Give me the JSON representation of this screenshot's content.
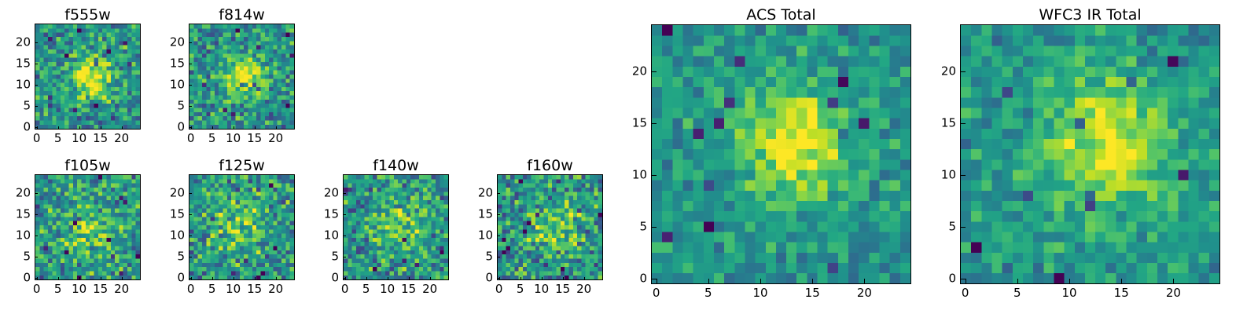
{
  "chart_data": [
    {
      "type": "heatmap",
      "title": "f555w",
      "xticks": [
        0,
        5,
        10,
        15,
        20
      ],
      "yticks": [
        0,
        5,
        10,
        15,
        20
      ],
      "xlim": [
        0,
        25
      ],
      "ylim": [
        0,
        25
      ],
      "grid": false,
      "colormap": "viridis",
      "pattern": {
        "cx": 13,
        "cy": 12,
        "peak": 0.85,
        "sigma": 3.5,
        "noise": 0.45,
        "seed": 11
      }
    },
    {
      "type": "heatmap",
      "title": "f814w",
      "xticks": [
        0,
        5,
        10,
        15,
        20
      ],
      "yticks": [
        0,
        5,
        10,
        15,
        20
      ],
      "xlim": [
        0,
        25
      ],
      "ylim": [
        0,
        25
      ],
      "grid": false,
      "colormap": "viridis",
      "pattern": {
        "cx": 13,
        "cy": 12,
        "peak": 0.8,
        "sigma": 3.5,
        "noise": 0.45,
        "seed": 23
      }
    },
    {
      "type": "heatmap",
      "title": "f105w",
      "xticks": [
        0,
        5,
        10,
        15,
        20
      ],
      "yticks": [
        0,
        5,
        10,
        15,
        20
      ],
      "xlim": [
        0,
        25
      ],
      "ylim": [
        0,
        25
      ],
      "grid": false,
      "colormap": "viridis",
      "pattern": {
        "cx": 12,
        "cy": 11,
        "peak": 0.4,
        "sigma": 5,
        "noise": 0.5,
        "seed": 37
      }
    },
    {
      "type": "heatmap",
      "title": "f125w",
      "xticks": [
        0,
        5,
        10,
        15,
        20
      ],
      "yticks": [
        0,
        5,
        10,
        15,
        20
      ],
      "xlim": [
        0,
        25
      ],
      "ylim": [
        0,
        25
      ],
      "grid": false,
      "colormap": "viridis",
      "pattern": {
        "cx": 12,
        "cy": 13,
        "peak": 0.4,
        "sigma": 5,
        "noise": 0.5,
        "seed": 41
      }
    },
    {
      "type": "heatmap",
      "title": "f140w",
      "xticks": [
        0,
        5,
        10,
        15,
        20
      ],
      "yticks": [
        0,
        5,
        10,
        15,
        20
      ],
      "xlim": [
        0,
        25
      ],
      "ylim": [
        0,
        25
      ],
      "grid": false,
      "colormap": "viridis",
      "pattern": {
        "cx": 13,
        "cy": 12,
        "peak": 0.45,
        "sigma": 4.5,
        "noise": 0.5,
        "seed": 53
      }
    },
    {
      "type": "heatmap",
      "title": "f160w",
      "xticks": [
        0,
        5,
        10,
        15,
        20
      ],
      "yticks": [
        0,
        5,
        10,
        15,
        20
      ],
      "xlim": [
        0,
        25
      ],
      "ylim": [
        0,
        25
      ],
      "grid": false,
      "colormap": "viridis",
      "pattern": {
        "cx": 13,
        "cy": 12,
        "peak": 0.5,
        "sigma": 4.5,
        "noise": 0.5,
        "seed": 67
      }
    },
    {
      "type": "heatmap",
      "title": "ACS Total",
      "xticks": [
        0,
        5,
        10,
        15,
        20
      ],
      "yticks": [
        0,
        5,
        10,
        15,
        20
      ],
      "xlim": [
        0,
        25
      ],
      "ylim": [
        0,
        25
      ],
      "grid": false,
      "colormap": "viridis",
      "pattern": {
        "cx": 13.5,
        "cy": 13,
        "peak": 0.8,
        "sigma": 3.8,
        "noise": 0.3,
        "seed": 79
      }
    },
    {
      "type": "heatmap",
      "title": "WFC3 IR Total",
      "xticks": [
        0,
        5,
        10,
        15,
        20
      ],
      "yticks": [
        0,
        5,
        10,
        15,
        20
      ],
      "xlim": [
        0,
        25
      ],
      "ylim": [
        0,
        25
      ],
      "grid": false,
      "colormap": "viridis",
      "pattern": {
        "cx": 14,
        "cy": 13,
        "peak": 0.75,
        "sigma": 4.5,
        "noise": 0.3,
        "seed": 97
      }
    }
  ]
}
